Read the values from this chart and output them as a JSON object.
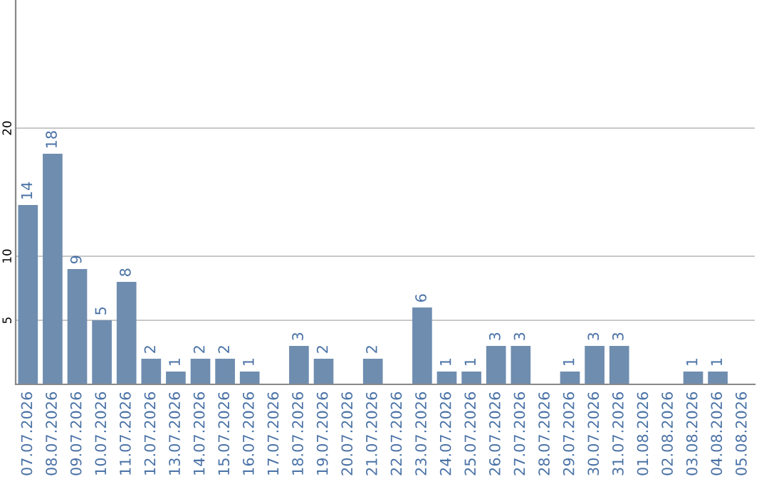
{
  "chart_data": {
    "type": "bar",
    "categories": [
      "07.07.2026",
      "08.07.2026",
      "09.07.2026",
      "10.07.2026",
      "11.07.2026",
      "12.07.2026",
      "13.07.2026",
      "14.07.2026",
      "15.07.2026",
      "16.07.2026",
      "17.07.2026",
      "18.07.2026",
      "19.07.2026",
      "20.07.2026",
      "21.07.2026",
      "22.07.2026",
      "23.07.2026",
      "24.07.2026",
      "25.07.2026",
      "26.07.2026",
      "27.07.2026",
      "28.07.2026",
      "29.07.2026",
      "30.07.2026",
      "31.07.2026",
      "01.08.2026",
      "02.08.2026",
      "03.08.2026",
      "04.08.2026",
      "05.08.2026"
    ],
    "values": [
      14,
      18,
      9,
      5,
      8,
      2,
      1,
      2,
      2,
      1,
      0,
      3,
      2,
      0,
      2,
      0,
      6,
      1,
      1,
      3,
      3,
      0,
      1,
      3,
      3,
      0,
      0,
      1,
      1,
      0
    ],
    "value_labels": [
      "14",
      "18",
      "9",
      "5",
      "8",
      "2",
      "1",
      "2",
      "2",
      "1",
      null,
      "3",
      "2",
      null,
      "2",
      null,
      "6",
      "1",
      "1",
      "3",
      "3",
      null,
      "1",
      "3",
      "3",
      null,
      null,
      "1",
      "1",
      null
    ],
    "color": "#6f8daf",
    "ylim": [
      0,
      30
    ],
    "yticks": [
      5,
      10,
      20
    ],
    "grid": "y"
  }
}
